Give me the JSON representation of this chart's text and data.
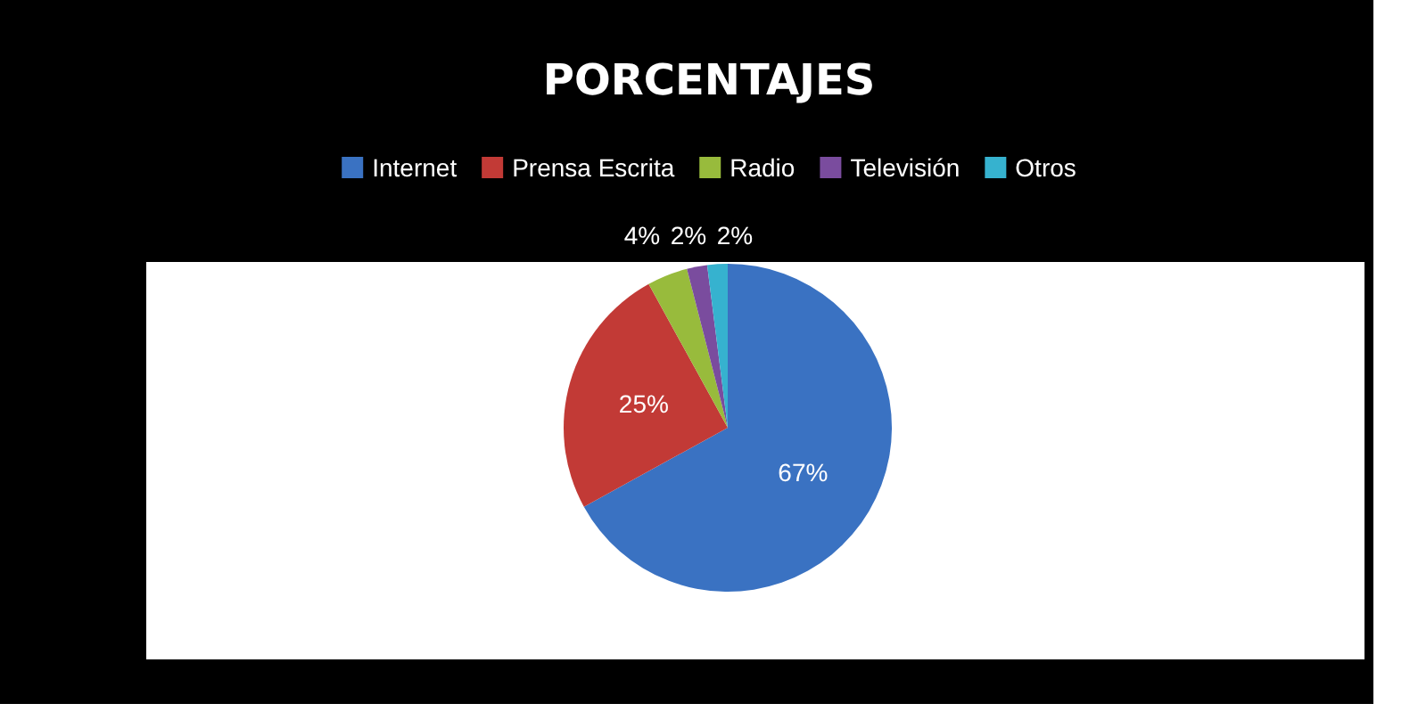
{
  "chart_data": {
    "type": "pie",
    "title": "PORCENTAJES",
    "categories": [
      "Internet",
      "Prensa Escrita",
      "Radio",
      "Televisión",
      "Otros"
    ],
    "values": [
      67,
      25,
      4,
      2,
      2
    ],
    "colors": [
      "#3a72c2",
      "#c23a36",
      "#98bb3c",
      "#7a4c9e",
      "#36b2cf"
    ],
    "value_labels": [
      "67%",
      "25%",
      "4%",
      "2%",
      "2%"
    ],
    "legend": "top"
  }
}
